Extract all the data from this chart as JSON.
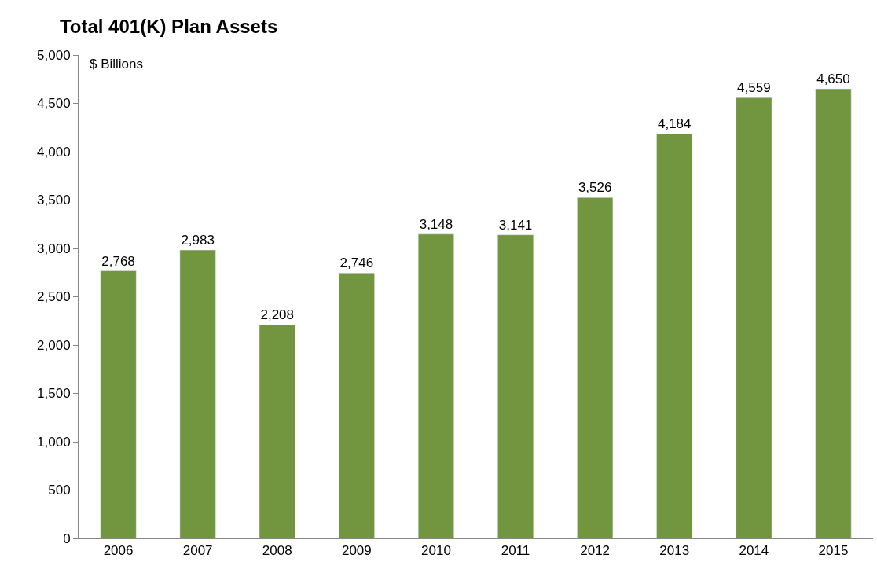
{
  "chart_data": {
    "type": "bar",
    "title": "Total 401(K) Plan Assets",
    "ylabel": "$ Billions",
    "categories": [
      "2006",
      "2007",
      "2008",
      "2009",
      "2010",
      "2011",
      "2012",
      "2013",
      "2014",
      "2015"
    ],
    "values": [
      2768,
      2983,
      2208,
      2746,
      3148,
      3141,
      3526,
      4184,
      4559,
      4650
    ],
    "color": "#71963f",
    "ylim": [
      0,
      5000
    ],
    "yticks": [
      {
        "value": 0,
        "label": "0"
      },
      {
        "value": 500,
        "label": "500"
      },
      {
        "value": 1000,
        "label": "1,000"
      },
      {
        "value": 1500,
        "label": "1,500"
      },
      {
        "value": 2000,
        "label": "2,000"
      },
      {
        "value": 2500,
        "label": "2,500"
      },
      {
        "value": 3000,
        "label": "3,000"
      },
      {
        "value": 3500,
        "label": "3,500"
      },
      {
        "value": 4000,
        "label": "4,000"
      },
      {
        "value": 4500,
        "label": "4,500"
      },
      {
        "value": 5000,
        "label": "5,000"
      }
    ],
    "value_labels": [
      "2,768",
      "2,983",
      "2,208",
      "2,746",
      "3,148",
      "3,141",
      "3,526",
      "4,184",
      "4,559",
      "4,650"
    ],
    "legend": false
  }
}
